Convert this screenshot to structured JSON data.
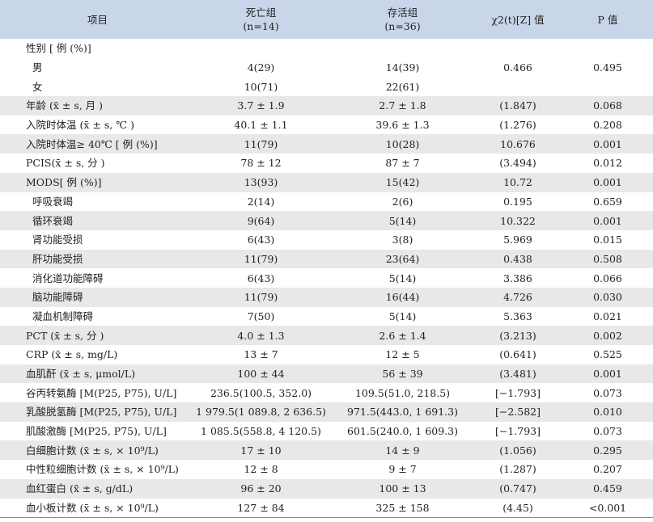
{
  "header": {
    "item": "项目",
    "dead_line1": "死亡组",
    "dead_line2": "(n=14)",
    "alive_line1": "存活组",
    "alive_line2": "(n=36)",
    "stat": "χ2(t)[Z] 值",
    "p": "P 值"
  },
  "rows": [
    {
      "label": "性别 [ 例 (%)]",
      "dead": "",
      "alive": "",
      "stat": "",
      "p": "",
      "shade": false,
      "indent": false
    },
    {
      "label": "男",
      "dead": "4(29)",
      "alive": "14(39)",
      "stat": "0.466",
      "p": "0.495",
      "shade": false,
      "indent": true
    },
    {
      "label": "女",
      "dead": "10(71)",
      "alive": "22(61)",
      "stat": "",
      "p": "",
      "shade": false,
      "indent": true
    },
    {
      "label": "年龄 (x̄ ± s, 月 )",
      "dead": "3.7 ± 1.9",
      "alive": "2.7 ± 1.8",
      "stat": "(1.847)",
      "p": "0.068",
      "shade": true,
      "indent": false
    },
    {
      "label": "入院时体温 (x̄ ± s, ℃ )",
      "dead": "40.1 ± 1.1",
      "alive": "39.6 ± 1.3",
      "stat": "(1.276)",
      "p": "0.208",
      "shade": false,
      "indent": false
    },
    {
      "label": "入院时体温≥ 40℃ [ 例 (%)]",
      "dead": "11(79)",
      "alive": "10(28)",
      "stat": "10.676",
      "p": "0.001",
      "shade": true,
      "indent": false
    },
    {
      "label": "PCIS(x̄ ± s, 分 )",
      "dead": "78 ± 12",
      "alive": "87 ± 7",
      "stat": "(3.494)",
      "p": "0.012",
      "shade": false,
      "indent": false
    },
    {
      "label": "MODS[ 例 (%)]",
      "dead": "13(93)",
      "alive": "15(42)",
      "stat": "10.72",
      "p": "0.001",
      "shade": true,
      "indent": false
    },
    {
      "label": "呼吸衰竭",
      "dead": "2(14)",
      "alive": "2(6)",
      "stat": "0.195",
      "p": "0.659",
      "shade": false,
      "indent": true
    },
    {
      "label": "循环衰竭",
      "dead": "9(64)",
      "alive": "5(14)",
      "stat": "10.322",
      "p": "0.001",
      "shade": true,
      "indent": true
    },
    {
      "label": "肾功能受损",
      "dead": "6(43)",
      "alive": "3(8)",
      "stat": "5.969",
      "p": "0.015",
      "shade": false,
      "indent": true
    },
    {
      "label": "肝功能受损",
      "dead": "11(79)",
      "alive": "23(64)",
      "stat": "0.438",
      "p": "0.508",
      "shade": true,
      "indent": true
    },
    {
      "label": "消化道功能障碍",
      "dead": "6(43)",
      "alive": "5(14)",
      "stat": "3.386",
      "p": "0.066",
      "shade": false,
      "indent": true
    },
    {
      "label": "脑功能障碍",
      "dead": "11(79)",
      "alive": "16(44)",
      "stat": "4.726",
      "p": "0.030",
      "shade": true,
      "indent": true
    },
    {
      "label": "凝血机制障碍",
      "dead": "7(50)",
      "alive": "5(14)",
      "stat": "5.363",
      "p": "0.021",
      "shade": false,
      "indent": true
    },
    {
      "label": "PCT (x̄ ± s, 分 )",
      "dead": "4.0 ± 1.3",
      "alive": "2.6 ± 1.4",
      "stat": "(3.213)",
      "p": "0.002",
      "shade": true,
      "indent": false
    },
    {
      "label": "CRP (x̄ ± s, mg/L)",
      "dead": "13 ± 7",
      "alive": "12 ± 5",
      "stat": "(0.641)",
      "p": "0.525",
      "shade": false,
      "indent": false
    },
    {
      "label": "血肌酐 (x̄ ± s, μmol/L)",
      "dead": "100 ± 44",
      "alive": "56 ± 39",
      "stat": "(3.481)",
      "p": "0.001",
      "shade": true,
      "indent": false
    },
    {
      "label": "谷丙转氨酶 [M(P25, P75), U/L]",
      "dead": "236.5(100.5, 352.0)",
      "alive": "109.5(51.0, 218.5)",
      "stat": "[−1.793]",
      "p": "0.073",
      "shade": false,
      "indent": false
    },
    {
      "label": "乳酸脱氢酶 [M(P25, P75), U/L]",
      "dead": "1 979.5(1 089.8, 2 636.5)",
      "alive": "971.5(443.0, 1 691.3)",
      "stat": "[−2.582]",
      "p": "0.010",
      "shade": true,
      "indent": false
    },
    {
      "label": "肌酸激酶 [M(P25, P75), U/L]",
      "dead": "1 085.5(558.8, 4 120.5)",
      "alive": "601.5(240.0, 1 609.3)",
      "stat": "[−1.793]",
      "p": "0.073",
      "shade": false,
      "indent": false
    },
    {
      "label": "白细胞计数 (x̄ ± s, × 10⁹/L)",
      "dead": "17 ± 10",
      "alive": "14 ± 9",
      "stat": "(1.056)",
      "p": "0.295",
      "shade": true,
      "indent": false
    },
    {
      "label": "中性粒细胞计数 (x̄ ± s, × 10⁹/L)",
      "dead": "12 ± 8",
      "alive": "9 ± 7",
      "stat": "(1.287)",
      "p": "0.207",
      "shade": false,
      "indent": false
    },
    {
      "label": "血红蛋白 (x̄ ± s, g/dL)",
      "dead": "96 ± 20",
      "alive": "100 ± 13",
      "stat": "(0.747)",
      "p": "0.459",
      "shade": true,
      "indent": false
    },
    {
      "label": "血小板计数 (x̄ ± s, × 10⁹/L)",
      "dead": "127 ± 84",
      "alive": "325 ± 158",
      "stat": "(4.45)",
      "p": "<0.001",
      "shade": false,
      "indent": false
    }
  ]
}
